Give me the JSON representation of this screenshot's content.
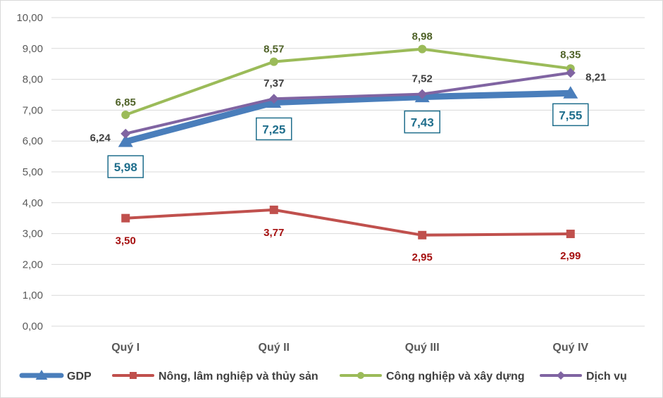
{
  "chart_data": {
    "type": "line",
    "title": "",
    "xlabel": "",
    "ylabel": "",
    "ylim": [
      0,
      10
    ],
    "y_tick_step": 1,
    "y_tick_labels": [
      "0,00",
      "1,00",
      "2,00",
      "3,00",
      "4,00",
      "5,00",
      "6,00",
      "7,00",
      "8,00",
      "9,00",
      "10,00"
    ],
    "grid": true,
    "legend_position": "bottom",
    "categories": [
      "Quý I",
      "Quý II",
      "Quý III",
      "Quý IV"
    ],
    "series": [
      {
        "name": "GDP",
        "color": "#4a7ebb",
        "marker": "triangle",
        "values": [
          5.98,
          7.25,
          7.43,
          7.55
        ],
        "labels": [
          "5,98",
          "7,25",
          "7,43",
          "7,55"
        ],
        "label_color": "#1f6e8c",
        "label_boxed": true
      },
      {
        "name": "Nông, lâm nghiệp và thủy sản",
        "color": "#c0504d",
        "marker": "square",
        "values": [
          3.5,
          3.77,
          2.95,
          2.99
        ],
        "labels": [
          "3,50",
          "3,77",
          "2,95",
          "2,99"
        ],
        "label_color": "#a50f0f"
      },
      {
        "name": "Công nghiệp và xây dựng",
        "color": "#9bbb59",
        "marker": "circle",
        "values": [
          6.85,
          8.57,
          8.98,
          8.35
        ],
        "labels": [
          "6,85",
          "8,57",
          "8,98",
          "8,35"
        ],
        "label_color": "#4f6228"
      },
      {
        "name": "Dịch vụ",
        "color": "#8064a2",
        "marker": "diamond",
        "values": [
          6.24,
          7.37,
          7.52,
          8.21
        ],
        "labels": [
          "6,24",
          "7,37",
          "7,52",
          "8,21"
        ],
        "label_color": "#404040"
      }
    ]
  }
}
